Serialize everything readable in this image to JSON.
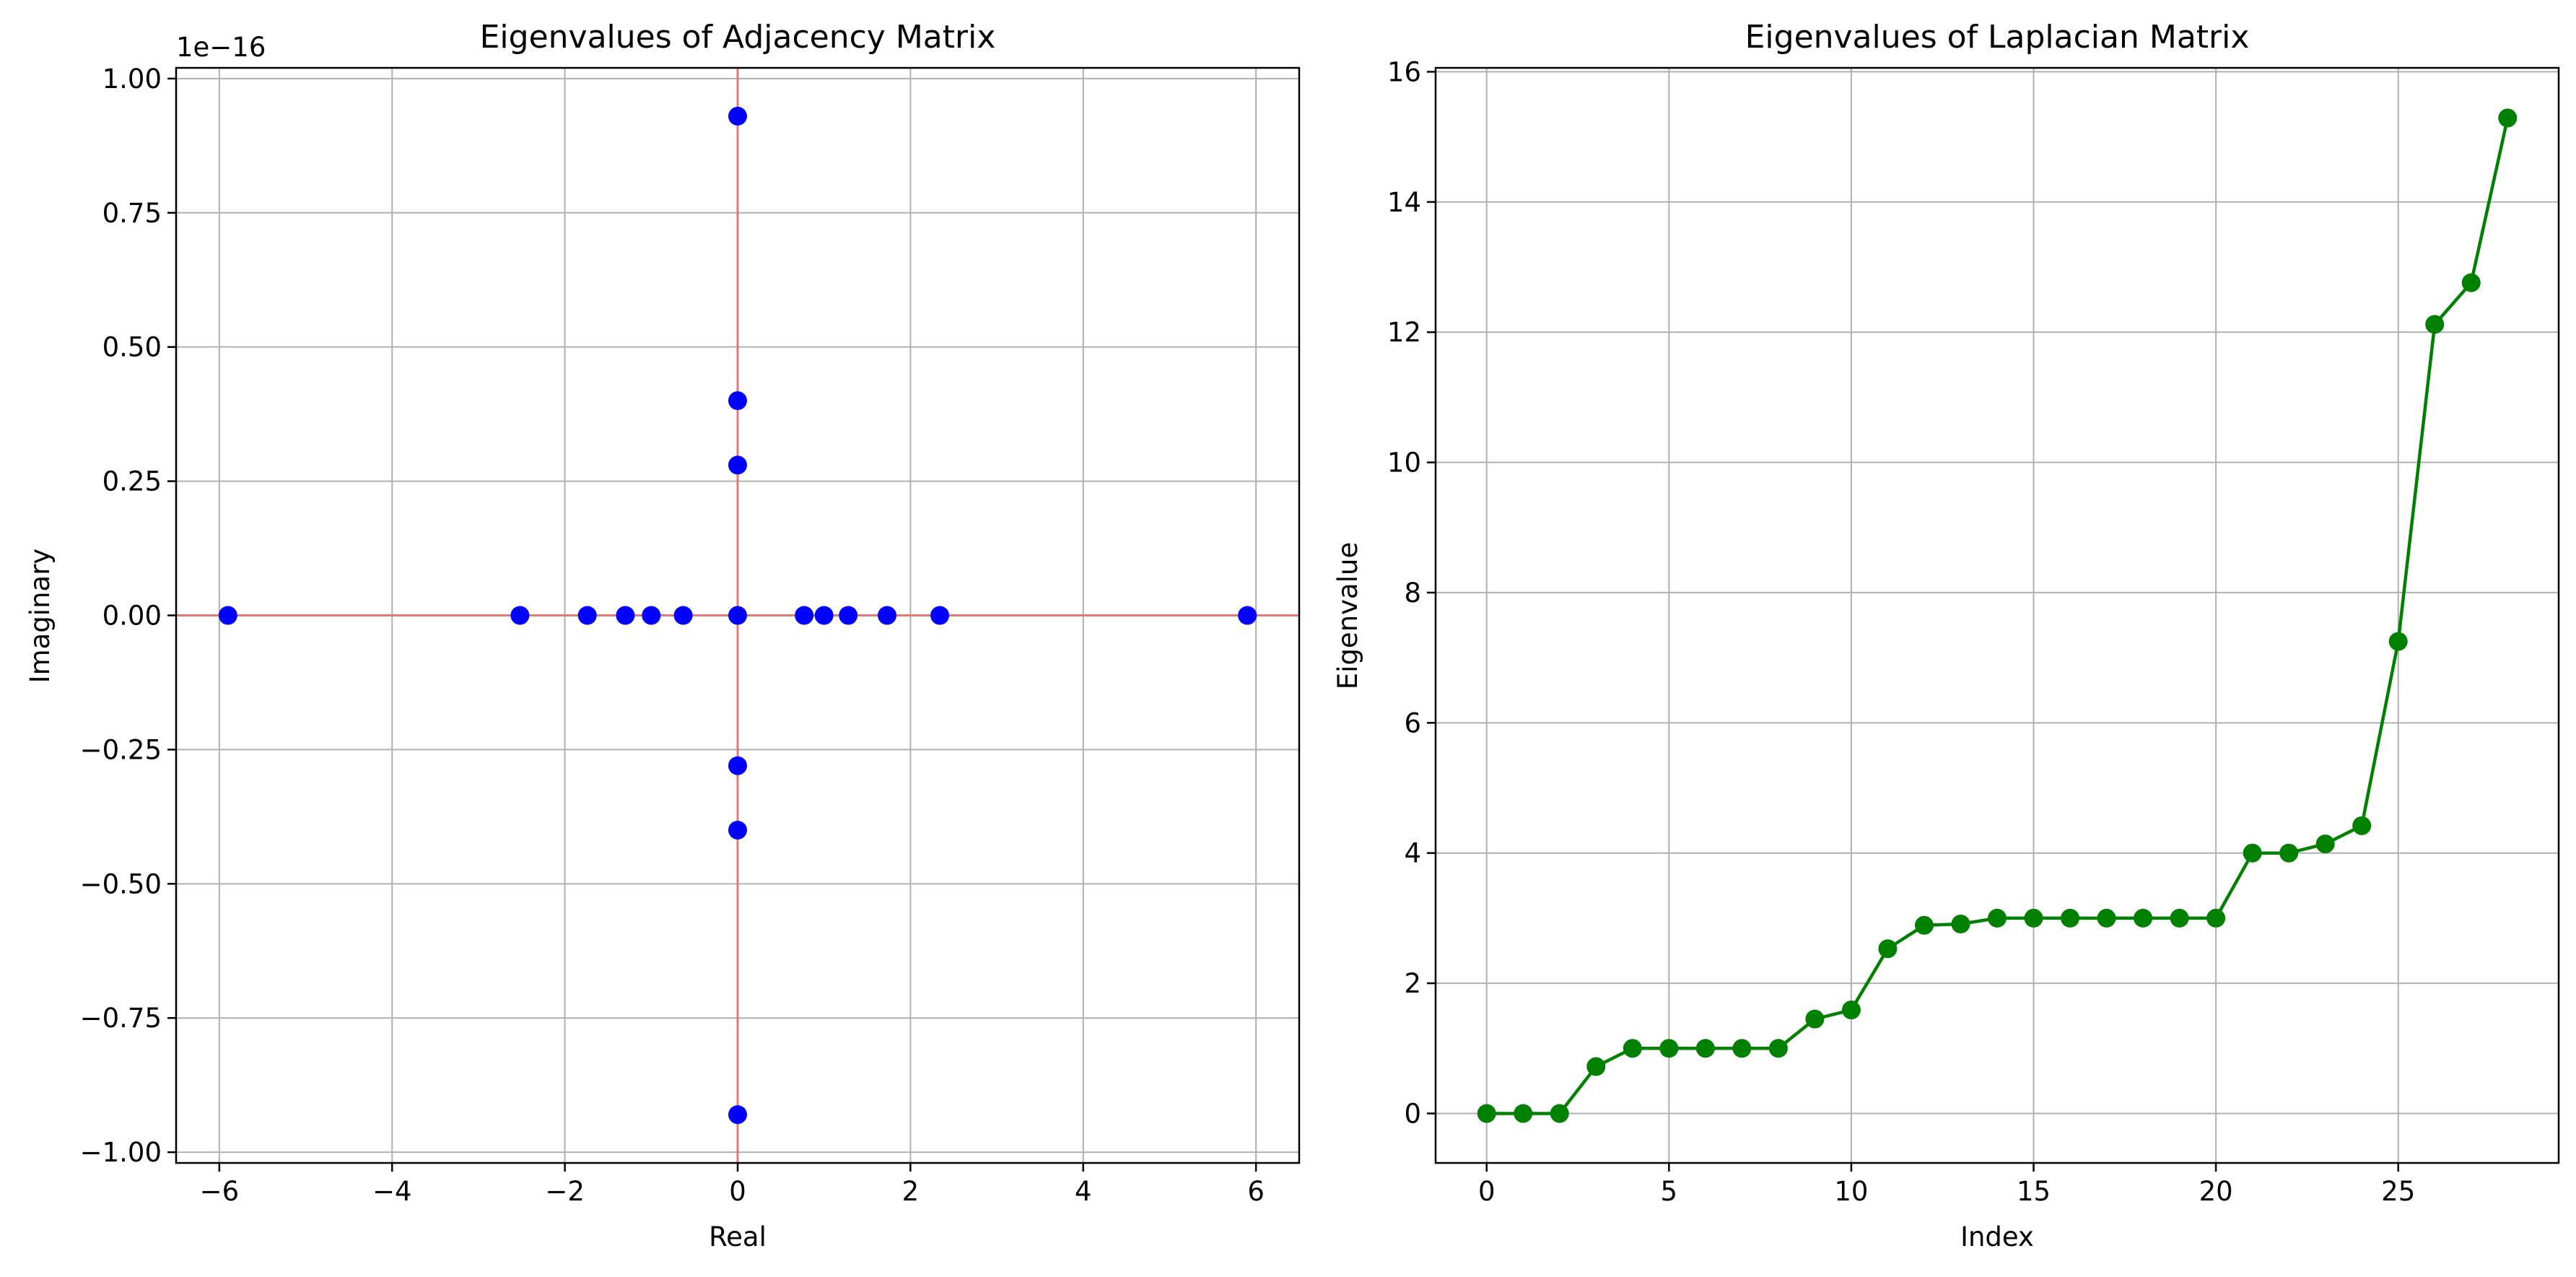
{
  "chart_data": [
    {
      "type": "scatter",
      "title": "Eigenvalues of Adjacency Matrix",
      "xlabel": "Real",
      "ylabel": "Imaginary",
      "y_offset_text": "1e−16",
      "xlim": [
        -6.5,
        6.5
      ],
      "ylim": [
        -1.02,
        1.02
      ],
      "x_ticks": [
        -6,
        -4,
        -2,
        0,
        2,
        4,
        6
      ],
      "x_tick_labels": [
        "−6",
        "−4",
        "−2",
        "0",
        "2",
        "4",
        "6"
      ],
      "y_ticks": [
        -1.0,
        -0.75,
        -0.5,
        -0.25,
        0.0,
        0.25,
        0.5,
        0.75,
        1.0
      ],
      "y_tick_labels": [
        "−1.00",
        "−0.75",
        "−0.50",
        "−0.25",
        "0.00",
        "0.25",
        "0.50",
        "0.75",
        "1.00"
      ],
      "grid": true,
      "reference_lines": [
        "y=0",
        "x=0"
      ],
      "reference_line_color": "#e07a7a",
      "marker_color": "#0000ff",
      "points": [
        {
          "x": -5.9,
          "y": 0.0
        },
        {
          "x": -2.52,
          "y": 0.0
        },
        {
          "x": -1.74,
          "y": 0.0
        },
        {
          "x": -1.3,
          "y": 0.0
        },
        {
          "x": -1.0,
          "y": 0.0
        },
        {
          "x": -0.63,
          "y": 0.0
        },
        {
          "x": 0.0,
          "y": 0.93
        },
        {
          "x": 0.0,
          "y": 0.4
        },
        {
          "x": 0.0,
          "y": 0.28
        },
        {
          "x": 0.0,
          "y": 0.0
        },
        {
          "x": 0.0,
          "y": -0.28
        },
        {
          "x": 0.0,
          "y": -0.4
        },
        {
          "x": 0.0,
          "y": -0.93
        },
        {
          "x": 0.77,
          "y": 0.0
        },
        {
          "x": 1.0,
          "y": 0.0
        },
        {
          "x": 1.28,
          "y": 0.0
        },
        {
          "x": 1.73,
          "y": 0.0
        },
        {
          "x": 2.34,
          "y": 0.0
        },
        {
          "x": 5.9,
          "y": 0.0
        }
      ]
    },
    {
      "type": "line",
      "title": "Eigenvalues of Laplacian Matrix",
      "xlabel": "Index",
      "ylabel": "Eigenvalue",
      "xlim": [
        -1.4,
        29.4
      ],
      "ylim": [
        -0.76,
        16.06
      ],
      "x_ticks": [
        0,
        5,
        10,
        15,
        20,
        25
      ],
      "x_tick_labels": [
        "0",
        "5",
        "10",
        "15",
        "20",
        "25"
      ],
      "y_ticks": [
        0,
        2,
        4,
        6,
        8,
        10,
        12,
        14,
        16
      ],
      "y_tick_labels": [
        "0",
        "2",
        "4",
        "6",
        "8",
        "10",
        "12",
        "14",
        "16"
      ],
      "grid": true,
      "line_color": "#008000",
      "x": [
        0,
        1,
        2,
        3,
        4,
        5,
        6,
        7,
        8,
        9,
        10,
        11,
        12,
        13,
        14,
        15,
        16,
        17,
        18,
        19,
        20,
        21,
        22,
        23,
        24,
        25,
        26,
        27,
        28
      ],
      "values": [
        0.0,
        0.0,
        0.0,
        0.72,
        1.0,
        1.0,
        1.0,
        1.0,
        1.0,
        1.45,
        1.59,
        2.53,
        2.89,
        2.91,
        3.0,
        3.0,
        3.0,
        3.0,
        3.0,
        3.0,
        3.0,
        4.0,
        4.0,
        4.14,
        4.42,
        7.25,
        12.12,
        12.76,
        15.29
      ]
    }
  ]
}
